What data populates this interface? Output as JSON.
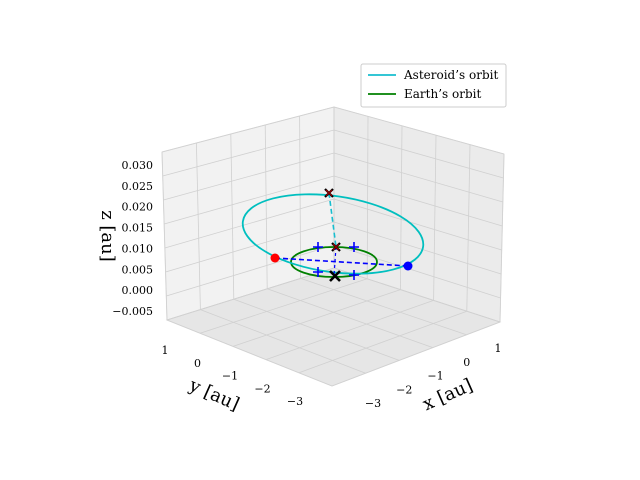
{
  "chart_data": {
    "type": "line",
    "projection": "3d",
    "view": "isometric, elevation ~20°, azimuth ~-135°",
    "axes": {
      "x": {
        "label": "x [au]",
        "ticks": [
          "−3",
          "−2",
          "−1",
          "0",
          "1"
        ],
        "tick_values": [
          -3,
          -2,
          -1,
          0,
          1
        ]
      },
      "y": {
        "label": "y [au]",
        "ticks": [
          "1",
          "0",
          "−1",
          "−2",
          "−3"
        ],
        "tick_values": [
          1,
          0,
          -1,
          -2,
          -3
        ]
      },
      "z": {
        "label": "z [au]",
        "ticks": [
          "0.030",
          "0.025",
          "0.020",
          "0.015",
          "0.010",
          "0.005",
          "0.000",
          "−0.005"
        ],
        "tick_values": [
          0.03,
          0.025,
          0.02,
          0.015,
          0.01,
          0.005,
          0.0,
          -0.005
        ]
      }
    },
    "grid": true,
    "legend": {
      "placement": "top-right",
      "entries": [
        {
          "label": "Asteroid’s orbit",
          "color": "#17becf"
        },
        {
          "label": "Earth’s orbit",
          "color": "#008000"
        }
      ]
    },
    "series": [
      {
        "name": "Asteroid’s orbit",
        "kind": "ellipse",
        "center": [
          -1.0,
          -1.0
        ],
        "semi_axes": [
          2.2,
          2.0
        ],
        "z": 0.012,
        "color": "#00bfbf"
      },
      {
        "name": "Earth’s orbit",
        "kind": "circle",
        "center": [
          0,
          0
        ],
        "radius": 1.0,
        "z": 0.006,
        "color": "#008000"
      }
    ],
    "markers": [
      {
        "label": "perihelion",
        "x": 0.7,
        "y": -0.3,
        "z": 0.005,
        "color": "#0000ff",
        "symbol": "circle"
      },
      {
        "label": "aphelion",
        "x": -2.8,
        "y": -2.4,
        "z": 0.009,
        "color": "#ff0000",
        "symbol": "circle"
      },
      {
        "label": "node",
        "x": 0.0,
        "y": 0.0,
        "z": 0.026,
        "color": "#8b0000",
        "symbol": "x"
      },
      {
        "label": "node",
        "x": 0.0,
        "y": 0.0,
        "z": 0.011,
        "color": "#8b0000",
        "symbol": "x"
      },
      {
        "label": "Sun",
        "x": 0.0,
        "y": 0.0,
        "z": 0.006,
        "color": "#000000",
        "symbol": "x"
      }
    ],
    "plus_markers": [
      {
        "x": -0.9,
        "y": 0.3,
        "z": 0.008
      },
      {
        "x": 0.5,
        "y": 0.8,
        "z": 0.008
      },
      {
        "x": 0.8,
        "y": -0.6,
        "z": 0.004
      },
      {
        "x": -0.6,
        "y": -0.8,
        "z": 0.004
      }
    ],
    "dashed_lines": [
      {
        "color": "#0000ff",
        "from": "aphelion",
        "to": "perihelion"
      },
      {
        "color": "#17becf",
        "from": "node-top",
        "to": "node-bottom"
      }
    ]
  }
}
